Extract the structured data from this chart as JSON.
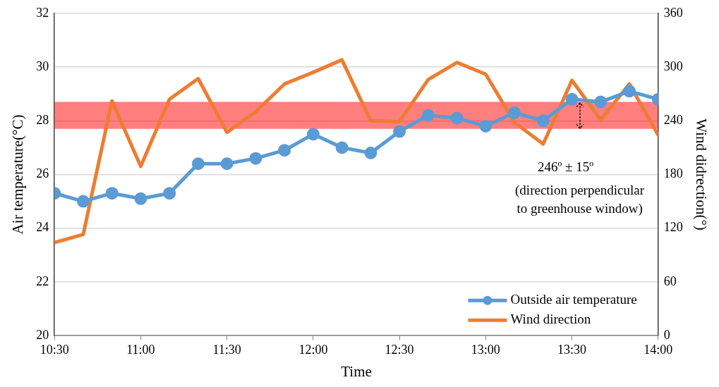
{
  "chart_data": {
    "type": "line",
    "xlabel": "Time",
    "ylabel": "Air temperature(°C)",
    "y2label": "Wind didrection(°)",
    "x": [
      10.5,
      10.6667,
      10.8333,
      11,
      11.1667,
      11.3333,
      11.5,
      11.6667,
      11.8333,
      12,
      12.1667,
      12.3333,
      12.5,
      12.6667,
      12.8333,
      13,
      13.1667,
      13.3333,
      13.5,
      13.6667,
      13.8333,
      14
    ],
    "series": [
      {
        "name": "Outside air temperature",
        "color": "#5b9bd5",
        "marker": "circle",
        "values": [
          25.3,
          25.0,
          25.3,
          25.1,
          25.3,
          26.4,
          26.4,
          26.6,
          26.9,
          27.5,
          27.0,
          26.8,
          27.6,
          28.2,
          28.1,
          27.8,
          28.3,
          28.0,
          28.8,
          28.7,
          29.1,
          28.8
        ]
      },
      {
        "name": "Wind direction",
        "color": "#ed7d31",
        "axis": "y2",
        "marker": "none",
        "values": [
          104,
          113,
          262,
          189,
          264,
          287,
          227,
          250,
          281,
          294,
          308,
          240,
          239,
          286,
          305,
          292,
          238,
          214,
          285,
          241,
          281,
          224
        ]
      }
    ],
    "xlim": [
      10.5,
      14
    ],
    "xticks": [
      {
        "value": 10.5,
        "label": "10:30"
      },
      {
        "value": 11,
        "label": "11:00"
      },
      {
        "value": 11.5,
        "label": "11:30"
      },
      {
        "value": 12,
        "label": "12:00"
      },
      {
        "value": 12.5,
        "label": "12:30"
      },
      {
        "value": 13,
        "label": "13:00"
      },
      {
        "value": 13.5,
        "label": "13:30"
      },
      {
        "value": 14,
        "label": "14:00"
      }
    ],
    "ylim": [
      20,
      32
    ],
    "yticks": [
      20,
      22,
      24,
      26,
      28,
      30,
      32
    ],
    "y2lim": [
      0,
      360
    ],
    "y2ticks": [
      0,
      60,
      120,
      180,
      240,
      300,
      360
    ],
    "bands": [
      {
        "axis": "y2",
        "from": 231,
        "to": 261,
        "color": "#ff0000"
      }
    ],
    "annotations": [
      "246º ± 15º",
      "(direction perpendicular to greenhouse window)"
    ],
    "grid": "y",
    "legend": "bottom right"
  }
}
